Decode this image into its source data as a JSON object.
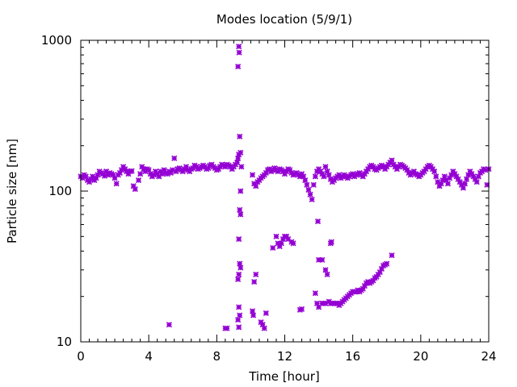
{
  "chart_data": {
    "type": "scatter",
    "title": "Modes location (5/9/1)",
    "xlabel": "Time [hour]",
    "ylabel": "Particle size [nm]",
    "xlim": [
      0,
      24
    ],
    "ylim": [
      10,
      1000
    ],
    "yscale": "log",
    "grid": false,
    "marker": "asterisk",
    "color": "#9400d3",
    "x_ticks": [
      0,
      4,
      8,
      12,
      16,
      20,
      24
    ],
    "x_tick_labels": [
      "0",
      "4",
      "8",
      "12",
      "16",
      "20",
      "24"
    ],
    "y_ticks": [
      10,
      100,
      1000
    ],
    "y_tick_labels": [
      "10",
      "100",
      "1000"
    ],
    "series": [
      {
        "points": [
          [
            0.0,
            125
          ],
          [
            0.1,
            122
          ],
          [
            0.2,
            128
          ],
          [
            0.3,
            125
          ],
          [
            0.4,
            118
          ],
          [
            0.5,
            115
          ],
          [
            0.6,
            120
          ],
          [
            0.7,
            125
          ],
          [
            0.8,
            118
          ],
          [
            0.9,
            122
          ],
          [
            1.0,
            128
          ],
          [
            1.1,
            135
          ],
          [
            1.2,
            132
          ],
          [
            1.3,
            130
          ],
          [
            1.4,
            126
          ],
          [
            1.5,
            135
          ],
          [
            1.6,
            128
          ],
          [
            1.7,
            132
          ],
          [
            1.8,
            130
          ],
          [
            1.9,
            128
          ],
          [
            2.0,
            122
          ],
          [
            2.1,
            112
          ],
          [
            2.2,
            128
          ],
          [
            2.3,
            132
          ],
          [
            2.4,
            138
          ],
          [
            2.5,
            145
          ],
          [
            2.6,
            140
          ],
          [
            2.7,
            135
          ],
          [
            2.8,
            130
          ],
          [
            2.9,
            135
          ],
          [
            3.0,
            136
          ],
          [
            3.1,
            108
          ],
          [
            3.2,
            103
          ],
          [
            3.4,
            118
          ],
          [
            3.5,
            130
          ],
          [
            3.6,
            145
          ],
          [
            3.7,
            140
          ],
          [
            3.8,
            135
          ],
          [
            3.9,
            140
          ],
          [
            4.0,
            138
          ],
          [
            4.1,
            130
          ],
          [
            4.2,
            125
          ],
          [
            4.3,
            128
          ],
          [
            4.4,
            135
          ],
          [
            4.5,
            130
          ],
          [
            4.6,
            125
          ],
          [
            4.7,
            135
          ],
          [
            4.8,
            130
          ],
          [
            4.9,
            138
          ],
          [
            5.0,
            132
          ],
          [
            5.1,
            130
          ],
          [
            5.2,
            135
          ],
          [
            5.3,
            132
          ],
          [
            5.4,
            138
          ],
          [
            5.5,
            165
          ],
          [
            5.6,
            135
          ],
          [
            5.7,
            140
          ],
          [
            5.8,
            142
          ],
          [
            5.9,
            138
          ],
          [
            6.0,
            135
          ],
          [
            6.1,
            140
          ],
          [
            6.2,
            145
          ],
          [
            6.3,
            138
          ],
          [
            6.4,
            135
          ],
          [
            6.5,
            140
          ],
          [
            6.6,
            142
          ],
          [
            6.7,
            148
          ],
          [
            6.8,
            145
          ],
          [
            6.9,
            140
          ],
          [
            7.0,
            142
          ],
          [
            7.1,
            145
          ],
          [
            7.2,
            148
          ],
          [
            7.3,
            145
          ],
          [
            7.4,
            140
          ],
          [
            7.5,
            142
          ],
          [
            7.6,
            148
          ],
          [
            7.7,
            150
          ],
          [
            7.8,
            145
          ],
          [
            7.9,
            142
          ],
          [
            8.0,
            138
          ],
          [
            8.1,
            140
          ],
          [
            8.2,
            145
          ],
          [
            8.3,
            150
          ],
          [
            8.4,
            148
          ],
          [
            8.5,
            145
          ],
          [
            8.6,
            150
          ],
          [
            8.7,
            148
          ],
          [
            8.8,
            145
          ],
          [
            8.9,
            140
          ],
          [
            9.0,
            145
          ],
          [
            9.1,
            150
          ],
          [
            9.2,
            155
          ],
          [
            9.25,
            165
          ],
          [
            9.3,
            175
          ],
          [
            9.35,
            230
          ],
          [
            9.4,
            180
          ],
          [
            9.45,
            145
          ],
          [
            10.1,
            128
          ],
          [
            10.2,
            112
          ],
          [
            10.3,
            108
          ],
          [
            10.4,
            115
          ],
          [
            10.5,
            118
          ],
          [
            10.6,
            122
          ],
          [
            10.7,
            125
          ],
          [
            10.8,
            128
          ],
          [
            10.9,
            132
          ],
          [
            11.0,
            138
          ],
          [
            11.1,
            140
          ],
          [
            11.2,
            135
          ],
          [
            11.3,
            138
          ],
          [
            11.4,
            142
          ],
          [
            11.5,
            138
          ],
          [
            11.6,
            135
          ],
          [
            11.7,
            140
          ],
          [
            11.8,
            138
          ],
          [
            11.9,
            135
          ],
          [
            12.0,
            130
          ],
          [
            12.1,
            135
          ],
          [
            12.2,
            140
          ],
          [
            12.3,
            138
          ],
          [
            12.4,
            132
          ],
          [
            12.5,
            128
          ],
          [
            12.6,
            130
          ],
          [
            12.7,
            132
          ],
          [
            12.8,
            128
          ],
          [
            12.9,
            125
          ],
          [
            13.0,
            130
          ],
          [
            13.1,
            125
          ],
          [
            13.2,
            118
          ],
          [
            13.3,
            110
          ],
          [
            13.4,
            102
          ],
          [
            13.5,
            95
          ],
          [
            13.6,
            88
          ],
          [
            13.7,
            110
          ],
          [
            13.8,
            125
          ],
          [
            13.9,
            135
          ],
          [
            14.0,
            140
          ],
          [
            14.1,
            135
          ],
          [
            14.2,
            130
          ],
          [
            14.3,
            125
          ],
          [
            14.4,
            145
          ],
          [
            14.5,
            135
          ],
          [
            14.6,
            128
          ],
          [
            14.7,
            120
          ],
          [
            14.8,
            115
          ],
          [
            14.9,
            118
          ],
          [
            15.0,
            122
          ],
          [
            15.1,
            125
          ],
          [
            15.2,
            128
          ],
          [
            15.3,
            122
          ],
          [
            15.4,
            125
          ],
          [
            15.5,
            128
          ],
          [
            15.6,
            125
          ],
          [
            15.7,
            122
          ],
          [
            15.8,
            125
          ],
          [
            15.9,
            128
          ],
          [
            16.0,
            130
          ],
          [
            16.1,
            125
          ],
          [
            16.2,
            128
          ],
          [
            16.3,
            130
          ],
          [
            16.4,
            132
          ],
          [
            16.5,
            128
          ],
          [
            16.6,
            125
          ],
          [
            16.7,
            130
          ],
          [
            16.8,
            135
          ],
          [
            16.9,
            140
          ],
          [
            17.0,
            145
          ],
          [
            17.1,
            148
          ],
          [
            17.2,
            145
          ],
          [
            17.3,
            140
          ],
          [
            17.4,
            138
          ],
          [
            17.5,
            142
          ],
          [
            17.6,
            145
          ],
          [
            17.7,
            148
          ],
          [
            17.8,
            145
          ],
          [
            17.9,
            140
          ],
          [
            18.0,
            145
          ],
          [
            18.1,
            150
          ],
          [
            18.2,
            155
          ],
          [
            18.3,
            160
          ],
          [
            18.4,
            150
          ],
          [
            18.5,
            145
          ],
          [
            18.6,
            140
          ],
          [
            18.7,
            145
          ],
          [
            18.8,
            150
          ],
          [
            18.9,
            148
          ],
          [
            19.0,
            145
          ],
          [
            19.1,
            142
          ],
          [
            19.2,
            138
          ],
          [
            19.3,
            132
          ],
          [
            19.4,
            128
          ],
          [
            19.5,
            132
          ],
          [
            19.6,
            135
          ],
          [
            19.7,
            130
          ],
          [
            19.8,
            128
          ],
          [
            19.9,
            125
          ],
          [
            20.0,
            128
          ],
          [
            20.1,
            132
          ],
          [
            20.2,
            135
          ],
          [
            20.3,
            140
          ],
          [
            20.4,
            145
          ],
          [
            20.5,
            148
          ],
          [
            20.6,
            145
          ],
          [
            20.7,
            140
          ],
          [
            20.8,
            135
          ],
          [
            20.9,
            125
          ],
          [
            21.0,
            115
          ],
          [
            21.1,
            108
          ],
          [
            21.2,
            112
          ],
          [
            21.3,
            118
          ],
          [
            21.4,
            125
          ],
          [
            21.5,
            118
          ],
          [
            21.6,
            112
          ],
          [
            21.7,
            122
          ],
          [
            21.8,
            128
          ],
          [
            21.9,
            135
          ],
          [
            22.0,
            130
          ],
          [
            22.1,
            125
          ],
          [
            22.2,
            120
          ],
          [
            22.3,
            115
          ],
          [
            22.4,
            110
          ],
          [
            22.5,
            105
          ],
          [
            22.6,
            112
          ],
          [
            22.7,
            120
          ],
          [
            22.8,
            128
          ],
          [
            22.9,
            135
          ],
          [
            23.0,
            130
          ],
          [
            23.1,
            125
          ],
          [
            23.2,
            120
          ],
          [
            23.3,
            115
          ],
          [
            23.4,
            125
          ],
          [
            23.5,
            132
          ],
          [
            23.6,
            135
          ],
          [
            23.7,
            140
          ],
          [
            23.8,
            138
          ],
          [
            23.9,
            110
          ],
          [
            24.0,
            140
          ],
          [
            9.3,
            910
          ],
          [
            9.32,
            830
          ],
          [
            9.25,
            670
          ],
          [
            9.4,
            100
          ],
          [
            9.35,
            75
          ],
          [
            9.4,
            70
          ],
          [
            9.3,
            48
          ],
          [
            9.35,
            33
          ],
          [
            9.3,
            28
          ],
          [
            9.25,
            26
          ],
          [
            9.4,
            31
          ],
          [
            9.3,
            17
          ],
          [
            9.35,
            15
          ],
          [
            9.25,
            14
          ],
          [
            9.3,
            12.5
          ],
          [
            5.2,
            13
          ],
          [
            8.5,
            12.3
          ],
          [
            8.6,
            12.3
          ],
          [
            10.2,
            25
          ],
          [
            10.3,
            28
          ],
          [
            10.1,
            16
          ],
          [
            10.15,
            15
          ],
          [
            10.6,
            13.5
          ],
          [
            10.7,
            13
          ],
          [
            10.8,
            12.3
          ],
          [
            10.9,
            15.5
          ],
          [
            11.3,
            42
          ],
          [
            11.5,
            50
          ],
          [
            11.6,
            45
          ],
          [
            11.7,
            43
          ],
          [
            11.8,
            45
          ],
          [
            11.9,
            48
          ],
          [
            12.0,
            50
          ],
          [
            12.1,
            50
          ],
          [
            12.2,
            48
          ],
          [
            12.4,
            46
          ],
          [
            12.5,
            45
          ],
          [
            12.9,
            16.3
          ],
          [
            13.0,
            16.5
          ],
          [
            13.8,
            21
          ],
          [
            13.9,
            18
          ],
          [
            14.0,
            17
          ],
          [
            13.95,
            63
          ],
          [
            14.0,
            35
          ],
          [
            14.2,
            35
          ],
          [
            14.4,
            30
          ],
          [
            14.5,
            28
          ],
          [
            14.7,
            45
          ],
          [
            14.75,
            46
          ],
          [
            14.2,
            18
          ],
          [
            14.3,
            18
          ],
          [
            14.4,
            18
          ],
          [
            14.6,
            18.5
          ],
          [
            14.7,
            18
          ],
          [
            14.8,
            18
          ],
          [
            14.9,
            18
          ],
          [
            15.0,
            18
          ],
          [
            15.1,
            18
          ],
          [
            15.2,
            17.5
          ],
          [
            15.3,
            18
          ],
          [
            15.4,
            18.5
          ],
          [
            15.5,
            19
          ],
          [
            15.6,
            19.5
          ],
          [
            15.7,
            20
          ],
          [
            15.8,
            20.5
          ],
          [
            15.9,
            21
          ],
          [
            16.0,
            21.5
          ],
          [
            16.1,
            21.5
          ],
          [
            16.2,
            21.5
          ],
          [
            16.3,
            22
          ],
          [
            16.4,
            21.5
          ],
          [
            16.5,
            22
          ],
          [
            16.6,
            22.5
          ],
          [
            16.7,
            23.5
          ],
          [
            16.8,
            24.5
          ],
          [
            16.9,
            25
          ],
          [
            17.0,
            24.5
          ],
          [
            17.1,
            25
          ],
          [
            17.2,
            25.5
          ],
          [
            17.3,
            26.5
          ],
          [
            17.4,
            27
          ],
          [
            17.5,
            28
          ],
          [
            17.6,
            29
          ],
          [
            17.7,
            30.5
          ],
          [
            17.8,
            32
          ],
          [
            17.9,
            32.5
          ],
          [
            18.0,
            33
          ],
          [
            18.3,
            37.5
          ]
        ]
      }
    ]
  }
}
